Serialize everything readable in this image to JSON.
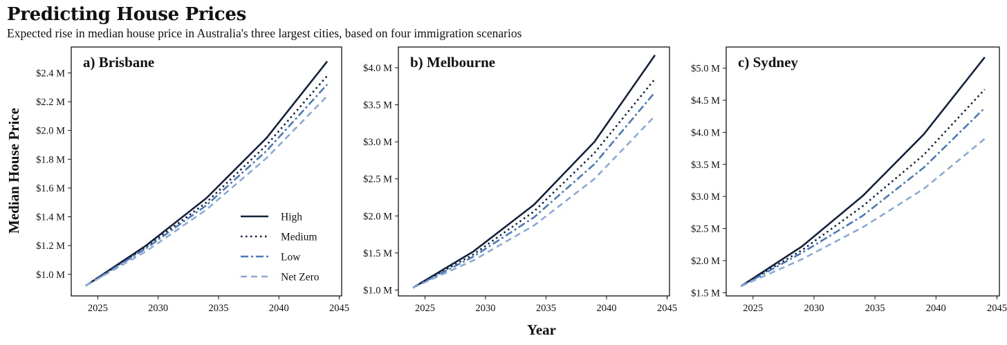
{
  "title": "Predicting House Prices",
  "subtitle": "Expected rise in median house price in Australia's three largest cities, based on four immigration scenarios",
  "chart_data": {
    "type": "line",
    "xlabel": "Year",
    "ylabel": "Median House Price",
    "legend": {
      "placement": "inside-bottom-right of first panel",
      "entries": [
        "High",
        "Medium",
        "Low",
        "Net Zero"
      ]
    },
    "series_styles": {
      "High": {
        "color": "#14213d",
        "dash": "solid"
      },
      "Medium": {
        "color": "#14213d",
        "dash": "dotted"
      },
      "Low": {
        "color": "#4a78b8",
        "dash": "dashdot"
      },
      "Net Zero": {
        "color": "#8aa9d6",
        "dash": "dashed"
      }
    },
    "grid": false,
    "panels": [
      {
        "title": "a) Brisbane",
        "x": [
          2024,
          2029,
          2034,
          2039,
          2044
        ],
        "xlim": [
          2022.8,
          2045.2
        ],
        "xticks": [
          2025,
          2030,
          2035,
          2040,
          2045
        ],
        "ylim": [
          0.85,
          2.58
        ],
        "yticks": [
          1.0,
          1.2,
          1.4,
          1.6,
          1.8,
          2.0,
          2.2,
          2.4
        ],
        "ytick_labels": [
          "$1.0 M",
          "$1.2 M",
          "$1.4 M",
          "$1.6 M",
          "$1.8 M",
          "$2.0 M",
          "$2.2 M",
          "$2.4 M"
        ],
        "series": [
          {
            "name": "High",
            "values": [
              0.92,
              1.2,
              1.53,
              1.95,
              2.48
            ]
          },
          {
            "name": "Medium",
            "values": [
              0.92,
              1.19,
              1.5,
              1.9,
              2.38
            ]
          },
          {
            "name": "Low",
            "values": [
              0.92,
              1.18,
              1.48,
              1.86,
              2.32
            ]
          },
          {
            "name": "Net Zero",
            "values": [
              0.92,
              1.16,
              1.45,
              1.81,
              2.24
            ]
          }
        ]
      },
      {
        "title": "b) Melbourne",
        "x": [
          2024,
          2029,
          2034,
          2039,
          2044
        ],
        "xlim": [
          2022.8,
          2045.2
        ],
        "xticks": [
          2025,
          2030,
          2035,
          2040,
          2045
        ],
        "ylim": [
          0.92,
          4.28
        ],
        "yticks": [
          1.0,
          1.5,
          2.0,
          2.5,
          3.0,
          3.5,
          4.0
        ],
        "ytick_labels": [
          "$1.0 M",
          "$1.5 M",
          "$2.0 M",
          "$2.5 M",
          "$3.0 M",
          "$3.5 M",
          "$4.0 M"
        ],
        "series": [
          {
            "name": "High",
            "values": [
              1.03,
              1.52,
              2.15,
              3.0,
              4.17
            ]
          },
          {
            "name": "Medium",
            "values": [
              1.03,
              1.48,
              2.06,
              2.85,
              3.85
            ]
          },
          {
            "name": "Low",
            "values": [
              1.03,
              1.45,
              1.98,
              2.7,
              3.67
            ]
          },
          {
            "name": "Net Zero",
            "values": [
              1.03,
              1.4,
              1.87,
              2.5,
              3.35
            ]
          }
        ]
      },
      {
        "title": "c) Sydney",
        "x": [
          2024,
          2029,
          2034,
          2039,
          2044
        ],
        "xlim": [
          2022.8,
          2045.2
        ],
        "xticks": [
          2025,
          2030,
          2035,
          2040,
          2045
        ],
        "ylim": [
          1.45,
          5.33
        ],
        "yticks": [
          1.5,
          2.0,
          2.5,
          3.0,
          3.5,
          4.0,
          4.5,
          5.0
        ],
        "ytick_labels": [
          "$1.5 M",
          "$2.0 M",
          "$2.5 M",
          "$3.0 M",
          "$3.5 M",
          "$4.0 M",
          "$4.5 M",
          "$5.0 M"
        ],
        "series": [
          {
            "name": "High",
            "values": [
              1.6,
              2.22,
              3.01,
              3.97,
              5.17
            ]
          },
          {
            "name": "Medium",
            "values": [
              1.6,
              2.16,
              2.85,
              3.65,
              4.67
            ]
          },
          {
            "name": "Low",
            "values": [
              1.6,
              2.12,
              2.7,
              3.45,
              4.38
            ]
          },
          {
            "name": "Net Zero",
            "values": [
              1.6,
              2.02,
              2.52,
              3.12,
              3.9
            ]
          }
        ]
      }
    ]
  }
}
